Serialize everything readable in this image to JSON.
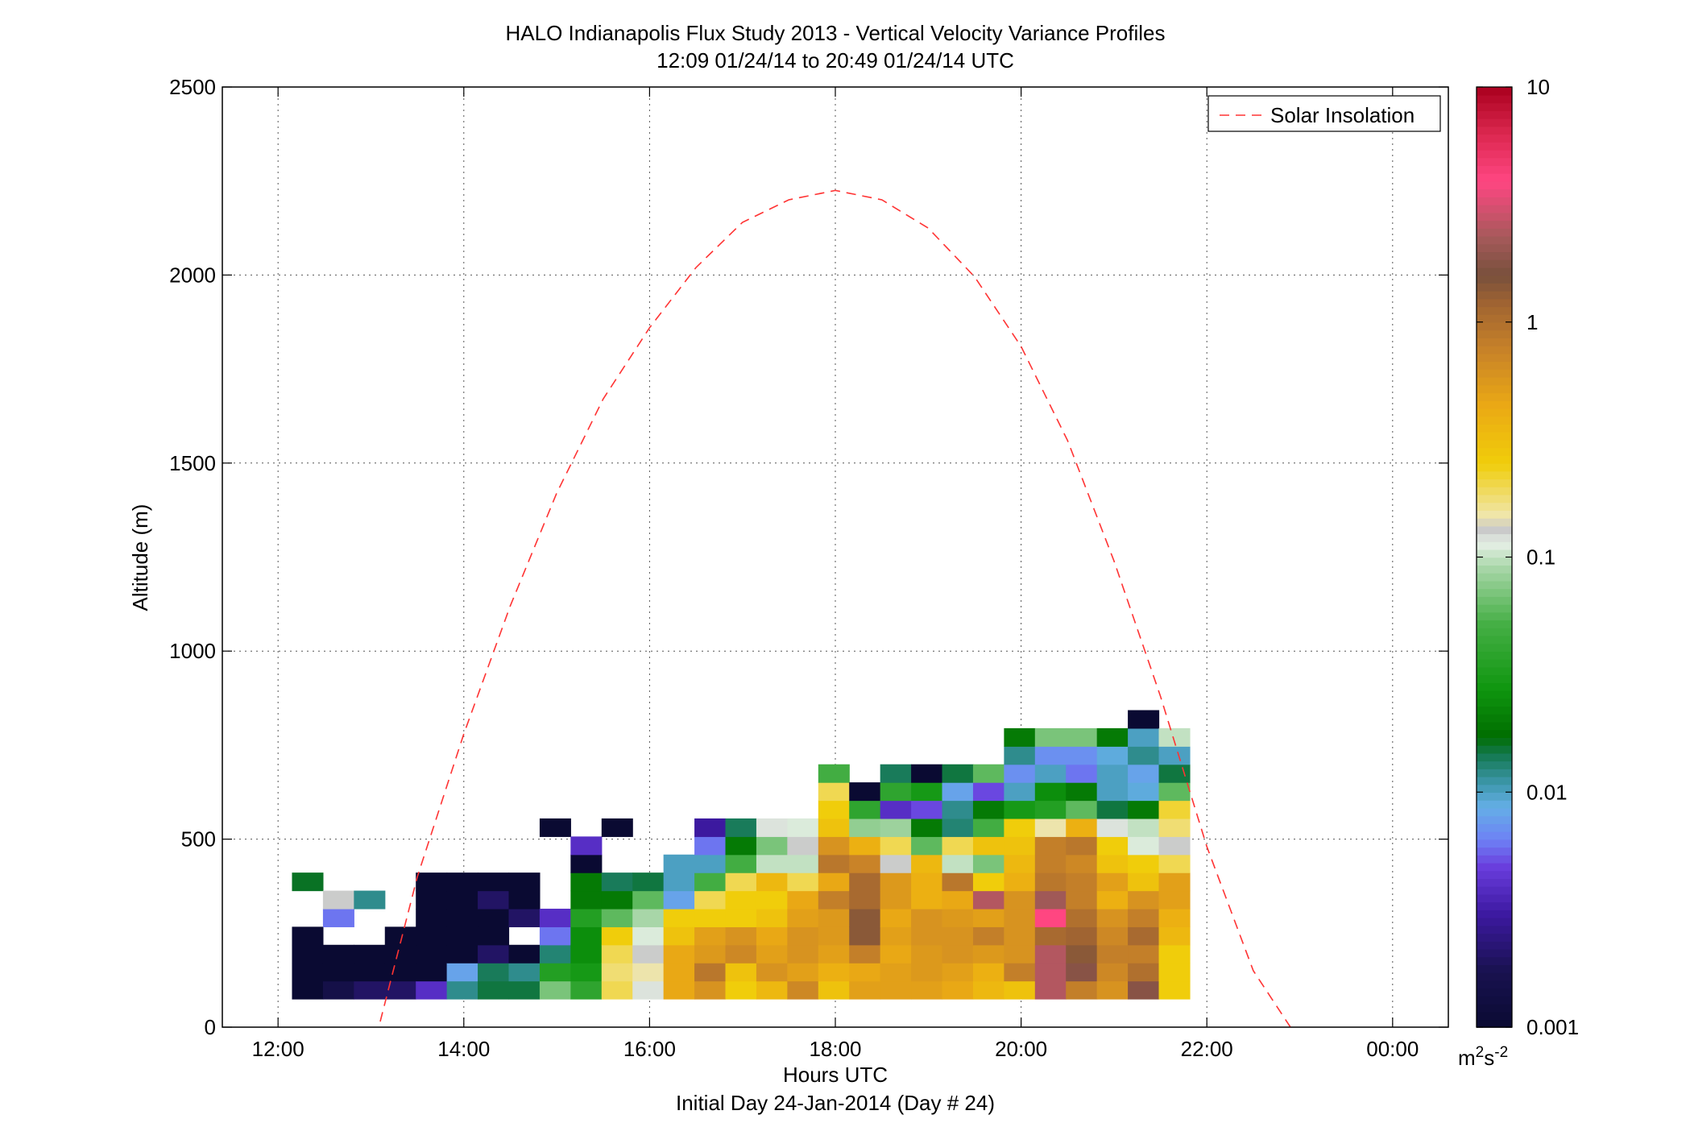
{
  "title": "HALO Indianapolis Flux Study 2013 - Vertical Velocity Variance Profiles",
  "subtitle": "12:09 01/24/14 to 20:49 01/24/14  UTC",
  "chart_data": {
    "type": "heatmap",
    "xlabel": "Hours UTC",
    "xlabel2": "Initial Day 24-Jan-2014 (Day # 24)",
    "ylabel": "Altitude (m)",
    "xlim": [
      11.4,
      24.6
    ],
    "ylim": [
      0,
      2500
    ],
    "x_ticks": [
      12,
      14,
      16,
      18,
      20,
      22,
      24
    ],
    "x_tick_labels": [
      "12:00",
      "14:00",
      "16:00",
      "18:00",
      "20:00",
      "22:00",
      "00:00"
    ],
    "y_ticks": [
      0,
      500,
      1000,
      1500,
      2000,
      2500
    ],
    "y_tick_labels": [
      "0",
      "500",
      "1000",
      "1500",
      "2000",
      "2500"
    ],
    "grid": true,
    "legend": {
      "placement": "top-right",
      "entries": [
        "Solar Insolation"
      ]
    },
    "colorbar": {
      "scale": "log",
      "range": [
        0.001,
        10
      ],
      "ticks": [
        0.001,
        0.01,
        0.1,
        1,
        10
      ],
      "tick_labels": [
        "0.001",
        "0.01",
        "0.1",
        "1",
        "10"
      ],
      "unit_base": "m",
      "unit_exp1": "2",
      "unit_mid": "s",
      "unit_exp2": "-2"
    },
    "heatmap": {
      "x_start": 12.15,
      "x_step": 0.3333,
      "y_start": 75,
      "y_step": 48,
      "value_unit": "m^2 s^-2",
      "columns": [
        [
          0.001,
          0.001,
          0.001,
          0.001,
          null,
          null,
          0.016
        ],
        [
          0.0015,
          0.001,
          0.001,
          null,
          0.006,
          0.13,
          null
        ],
        [
          0.002,
          0.001,
          0.001,
          null,
          null,
          0.012,
          null
        ],
        [
          0.002,
          0.001,
          0.001,
          0.001,
          null,
          null,
          null
        ],
        [
          0.004,
          0.001,
          0.001,
          0.001,
          0.001,
          0.001,
          0.001
        ],
        [
          0.012,
          0.008,
          0.001,
          0.001,
          0.001,
          0.001,
          0.001
        ],
        [
          0.015,
          0.014,
          0.002,
          0.001,
          0.001,
          0.002,
          0.001
        ],
        [
          0.015,
          0.012,
          0.001,
          null,
          0.002,
          0.001,
          0.001
        ],
        [
          0.07,
          0.035,
          0.013,
          0.006,
          0.004,
          null,
          null,
          null,
          null,
          0.001
        ],
        [
          0.04,
          0.03,
          0.025,
          0.025,
          0.035,
          0.02,
          0.02,
          0.001,
          0.004
        ],
        [
          0.2,
          0.18,
          0.2,
          0.25,
          0.06,
          0.02,
          0.014,
          null,
          null,
          0.001
        ],
        [
          0.12,
          0.15,
          0.13,
          0.11,
          0.09,
          0.06,
          0.015,
          null,
          null,
          null
        ],
        [
          0.45,
          0.45,
          0.45,
          0.3,
          0.25,
          0.008,
          0.01,
          0.01
        ],
        [
          0.6,
          0.9,
          0.55,
          0.5,
          0.25,
          0.2,
          0.05,
          0.01,
          0.006,
          0.003
        ],
        [
          0.25,
          0.3,
          0.7,
          0.6,
          0.25,
          0.25,
          0.2,
          0.05,
          0.02,
          0.014
        ],
        [
          0.35,
          0.6,
          0.5,
          0.45,
          0.3,
          0.25,
          0.35,
          0.1,
          0.07,
          0.12
        ],
        [
          0.7,
          0.5,
          0.6,
          0.6,
          0.5,
          0.45,
          0.2,
          0.1,
          0.13,
          0.11
        ],
        [
          0.3,
          0.4,
          0.5,
          0.55,
          0.55,
          0.8,
          0.45,
          0.9,
          0.6,
          0.3,
          0.25,
          0.2,
          0.05
        ],
        [
          0.5,
          0.45,
          0.8,
          1.4,
          1.4,
          1.1,
          1.1,
          0.75,
          0.4,
          0.08,
          0.04,
          0.001
        ],
        [
          0.5,
          0.5,
          0.45,
          0.5,
          0.45,
          0.55,
          0.55,
          0.13,
          0.2,
          0.085,
          0.004,
          0.04,
          0.014
        ],
        [
          0.5,
          0.55,
          0.55,
          0.6,
          0.6,
          0.4,
          0.4,
          0.35,
          0.06,
          0.02,
          0.005,
          0.03,
          0.001
        ],
        [
          0.45,
          0.5,
          0.6,
          0.6,
          0.55,
          0.45,
          0.9,
          0.1,
          0.2,
          0.013,
          0.012,
          0.008,
          0.015
        ],
        [
          0.35,
          0.4,
          0.55,
          0.8,
          0.5,
          2.5,
          0.25,
          0.07,
          0.3,
          0.05,
          0.02,
          0.005,
          0.06
        ],
        [
          0.3,
          0.8,
          0.6,
          0.6,
          0.6,
          0.6,
          0.4,
          0.35,
          0.3,
          0.25,
          0.03,
          0.01,
          0.007,
          0.012,
          0.02
        ],
        [
          2.5,
          2.5,
          2.5,
          1.1,
          4.0,
          2.2,
          0.9,
          0.8,
          0.8,
          0.15,
          0.035,
          0.025,
          0.01,
          0.007,
          0.07
        ],
        [
          0.8,
          1.8,
          1.4,
          1.2,
          1.0,
          0.8,
          0.8,
          0.7,
          0.9,
          0.4,
          0.06,
          0.02,
          0.006,
          0.007,
          0.07
        ],
        [
          0.6,
          0.7,
          0.8,
          0.7,
          0.6,
          0.4,
          0.5,
          0.3,
          0.25,
          0.12,
          0.015,
          0.01,
          0.01,
          0.009,
          0.02
        ],
        [
          1.8,
          1.0,
          0.8,
          1.1,
          0.8,
          0.6,
          0.3,
          0.25,
          0.11,
          0.1,
          0.02,
          0.009,
          0.008,
          0.012,
          0.01,
          0.001
        ],
        [
          0.25,
          0.25,
          0.25,
          0.35,
          0.4,
          0.5,
          0.5,
          0.2,
          0.13,
          0.18,
          0.22,
          0.06,
          0.015,
          0.01,
          0.1
        ]
      ]
    },
    "series": [
      {
        "name": "Solar Insolation",
        "style": "dashed",
        "color": "#ff3333",
        "x": [
          13.1,
          13.5,
          14.0,
          14.5,
          15.0,
          15.5,
          16.0,
          16.5,
          17.0,
          17.5,
          18.0,
          18.5,
          19.0,
          19.5,
          20.0,
          20.5,
          21.0,
          21.5,
          22.0,
          22.5,
          22.9
        ],
        "y": [
          15,
          400,
          780,
          1120,
          1420,
          1670,
          1860,
          2020,
          2140,
          2200,
          2225,
          2200,
          2125,
          1995,
          1810,
          1560,
          1240,
          880,
          480,
          150,
          0
        ]
      }
    ]
  }
}
